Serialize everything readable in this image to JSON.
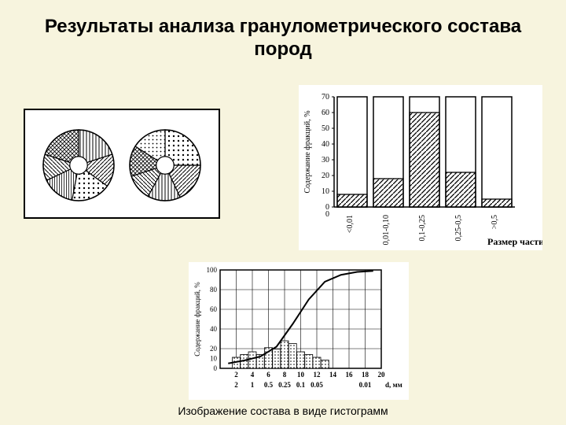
{
  "title": "Результаты анализа гранулометрического состава пород",
  "caption": "Изображение состава в виде гистограмм",
  "background_color": "#f7f4de",
  "title_fontsize": 24,
  "caption_fontsize": 14,
  "pie_chart": {
    "type": "pie",
    "left_pie": {
      "slices": [
        {
          "value": 20,
          "pattern": "vlines"
        },
        {
          "value": 15,
          "pattern": "hatch"
        },
        {
          "value": 18,
          "pattern": "dots"
        },
        {
          "value": 15,
          "pattern": "vlines2"
        },
        {
          "value": 12,
          "pattern": "diag"
        },
        {
          "value": 20,
          "pattern": "crosshatch"
        }
      ],
      "inner_radius_ratio": 0.25,
      "outer_radius": 45,
      "stroke": "#000000"
    },
    "right_pie": {
      "slices": [
        {
          "value": 25,
          "pattern": "dots"
        },
        {
          "value": 18,
          "pattern": "hatch"
        },
        {
          "value": 15,
          "pattern": "vlines"
        },
        {
          "value": 12,
          "pattern": "diag"
        },
        {
          "value": 14,
          "pattern": "crosshatch"
        },
        {
          "value": 16,
          "pattern": "dots2"
        }
      ],
      "inner_radius_ratio": 0.25,
      "outer_radius": 45,
      "stroke": "#000000"
    }
  },
  "bar_chart": {
    "type": "bar",
    "categories": [
      "<0,01",
      "0,01-0,10",
      "0,1-0,25",
      "0,25-0,5",
      ">0,5"
    ],
    "values": [
      8,
      18,
      60,
      22,
      5
    ],
    "ylim": [
      0,
      70
    ],
    "ytick_step": 10,
    "ylabel": "Содержание фракций, %",
    "xlabel": "Размер частиц,мм",
    "bar_pattern": "diagonal-hatch",
    "bar_stroke": "#000000",
    "background_color": "#ffffff",
    "label_fontsize": 10,
    "xlabel_fontsize": 12
  },
  "curve_chart": {
    "type": "combo",
    "xlabel": "d, мм",
    "ylabel": "Содержание фракций, %",
    "x_top_ticks": [
      2,
      4,
      6,
      8,
      10,
      12,
      14,
      16,
      18,
      20
    ],
    "x_bottom_ticks": [
      "2",
      "1",
      "0.5",
      "0.25",
      "0.1",
      "0.05",
      "",
      "",
      "0.01"
    ],
    "ylim": [
      0,
      100
    ],
    "ytick_step": 20,
    "bars": {
      "x": [
        2,
        3,
        4,
        5,
        6,
        7,
        8,
        9,
        10,
        11,
        12,
        13
      ],
      "y": [
        8,
        10,
        12,
        10,
        15,
        14,
        20,
        18,
        12,
        10,
        8,
        6
      ],
      "fill_pattern": "dots",
      "stroke": "#000000"
    },
    "curve": {
      "x": [
        1,
        3,
        5,
        7,
        9,
        11,
        13,
        15,
        17,
        19
      ],
      "y": [
        5,
        8,
        12,
        22,
        45,
        70,
        88,
        95,
        98,
        99
      ],
      "stroke": "#000000",
      "stroke_width": 2
    },
    "grid_color": "#000000",
    "background_color": "#ffffff",
    "label_fontsize": 9
  }
}
